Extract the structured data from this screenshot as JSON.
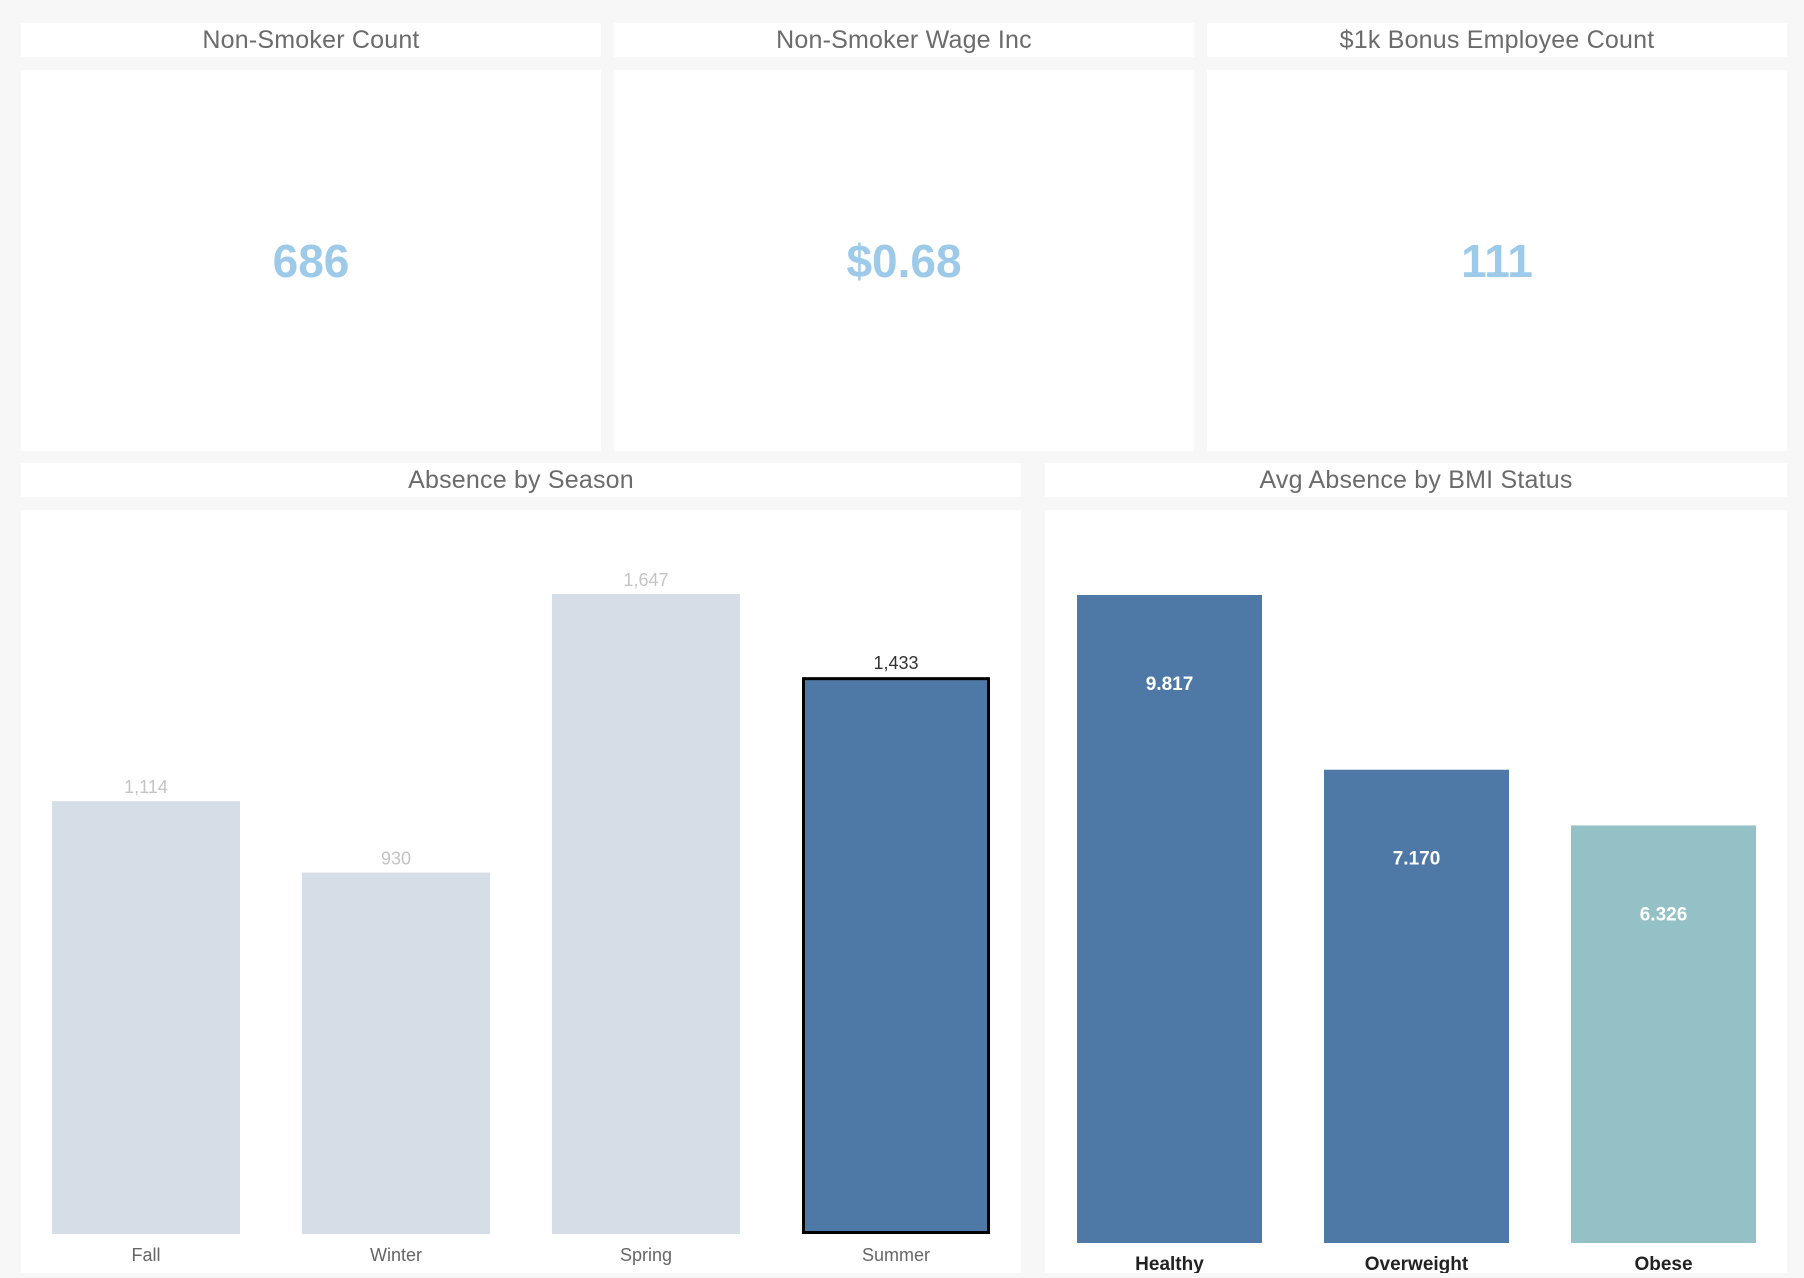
{
  "kpis": [
    {
      "title": "Non-Smoker Count",
      "value": "686"
    },
    {
      "title": "Non-Smoker Wage  Inc",
      "value": "$0.68"
    },
    {
      "title": "$1k Bonus Employee Count",
      "value": "111"
    }
  ],
  "chart_data": [
    {
      "type": "bar",
      "title": "Absence by Season",
      "categories": [
        "Fall",
        "Winter",
        "Spring",
        "Summer"
      ],
      "values": [
        1114,
        930,
        1647,
        1433
      ],
      "value_labels": [
        "1,114",
        "930",
        "1,647",
        "1,433"
      ],
      "highlighted": "Summer",
      "colors": {
        "default": "#d5dde6",
        "highlight": "#4e79a7",
        "outline": "#000000"
      },
      "ylim": [
        0,
        1647
      ],
      "grid": false
    },
    {
      "type": "bar",
      "title": "Avg Absence by BMI Status",
      "categories": [
        "Healthy",
        "Overweight",
        "Obese"
      ],
      "values": [
        9.817,
        7.17,
        6.326
      ],
      "value_labels": [
        "9.817",
        "7.170",
        "6.326"
      ],
      "bar_colors": [
        "#4e79a7",
        "#4e79a7",
        "#93c1c6"
      ],
      "ylim": [
        0,
        9.817
      ],
      "grid": false
    }
  ]
}
